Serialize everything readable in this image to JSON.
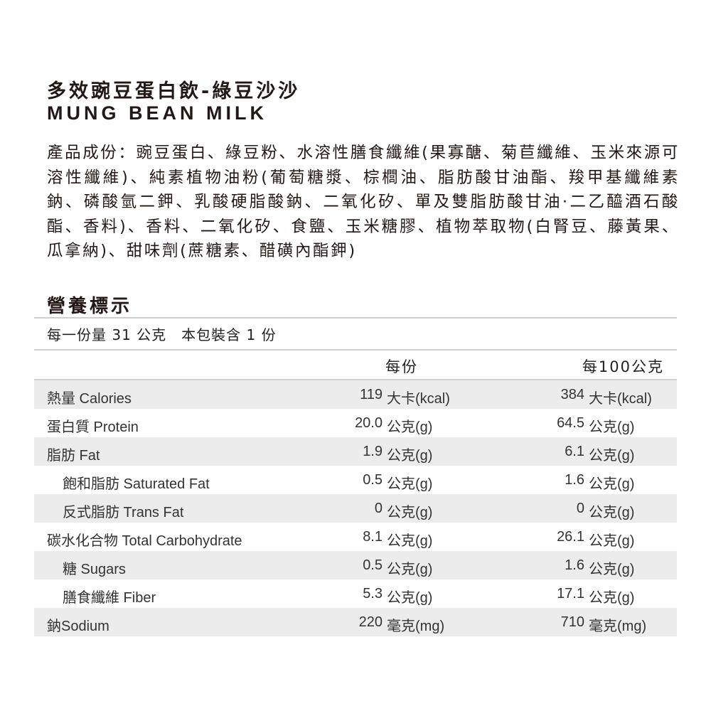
{
  "product": {
    "title": "多效豌豆蛋白飲-綠豆沙沙",
    "subtitle": "MUNG BEAN MILK",
    "ingredients": "產品成份：豌豆蛋白、綠豆粉、水溶性膳食纖維(果寡醣、菊苣纖維、玉米來源可溶性纖維)、純素植物油粉(葡萄糖漿、棕櫚油、脂肪酸甘油酯、羧甲基纖維素鈉、磷酸氫二鉀、乳酸硬脂酸鈉、二氧化矽、單及雙脂肪酸甘油·二乙醯酒石酸酯、香料)、香料、二氧化矽、食鹽、玉米糖膠、植物萃取物(白腎豆、藤黃果、瓜拿納)、甜味劑(蔗糖素、醋磺內酯鉀)"
  },
  "nutrition": {
    "heading": "營養標示",
    "serving": "每一份量 31 公克　本包裝含 1 份",
    "col_per_serving": "每份",
    "col_per_100g": "每100公克",
    "rows": [
      {
        "label": "熱量 Calories",
        "v1": "119",
        "u1": "大卡(kcal)",
        "v2": "384",
        "u2": "大卡(kcal)",
        "indent": false
      },
      {
        "label": "蛋白質 Protein",
        "v1": "20.0",
        "u1": "公克(g)",
        "v2": "64.5",
        "u2": "公克(g)",
        "indent": false
      },
      {
        "label": "脂肪 Fat",
        "v1": "1.9",
        "u1": "公克(g)",
        "v2": "6.1",
        "u2": "公克(g)",
        "indent": false
      },
      {
        "label": "飽和脂肪 Saturated Fat",
        "v1": "0.5",
        "u1": "公克(g)",
        "v2": "1.6",
        "u2": "公克(g)",
        "indent": true
      },
      {
        "label": "反式脂肪 Trans Fat",
        "v1": "0",
        "u1": "公克(g)",
        "v2": "0",
        "u2": "公克(g)",
        "indent": true
      },
      {
        "label": "碳水化合物  Total Carbohydrate",
        "v1": "8.1",
        "u1": "公克(g)",
        "v2": "26.1",
        "u2": "公克(g)",
        "indent": false
      },
      {
        "label": "糖 Sugars",
        "v1": "0.5",
        "u1": "公克(g)",
        "v2": "1.6",
        "u2": "公克(g)",
        "indent": true
      },
      {
        "label": "膳食纖維 Fiber",
        "v1": "5.3",
        "u1": "公克(g)",
        "v2": "17.1",
        "u2": "公克(g)",
        "indent": true
      },
      {
        "label": "鈉Sodium",
        "v1": "220",
        "u1": "毫克(mg)",
        "v2": "710",
        "u2": "毫克(mg)",
        "indent": false
      }
    ]
  }
}
